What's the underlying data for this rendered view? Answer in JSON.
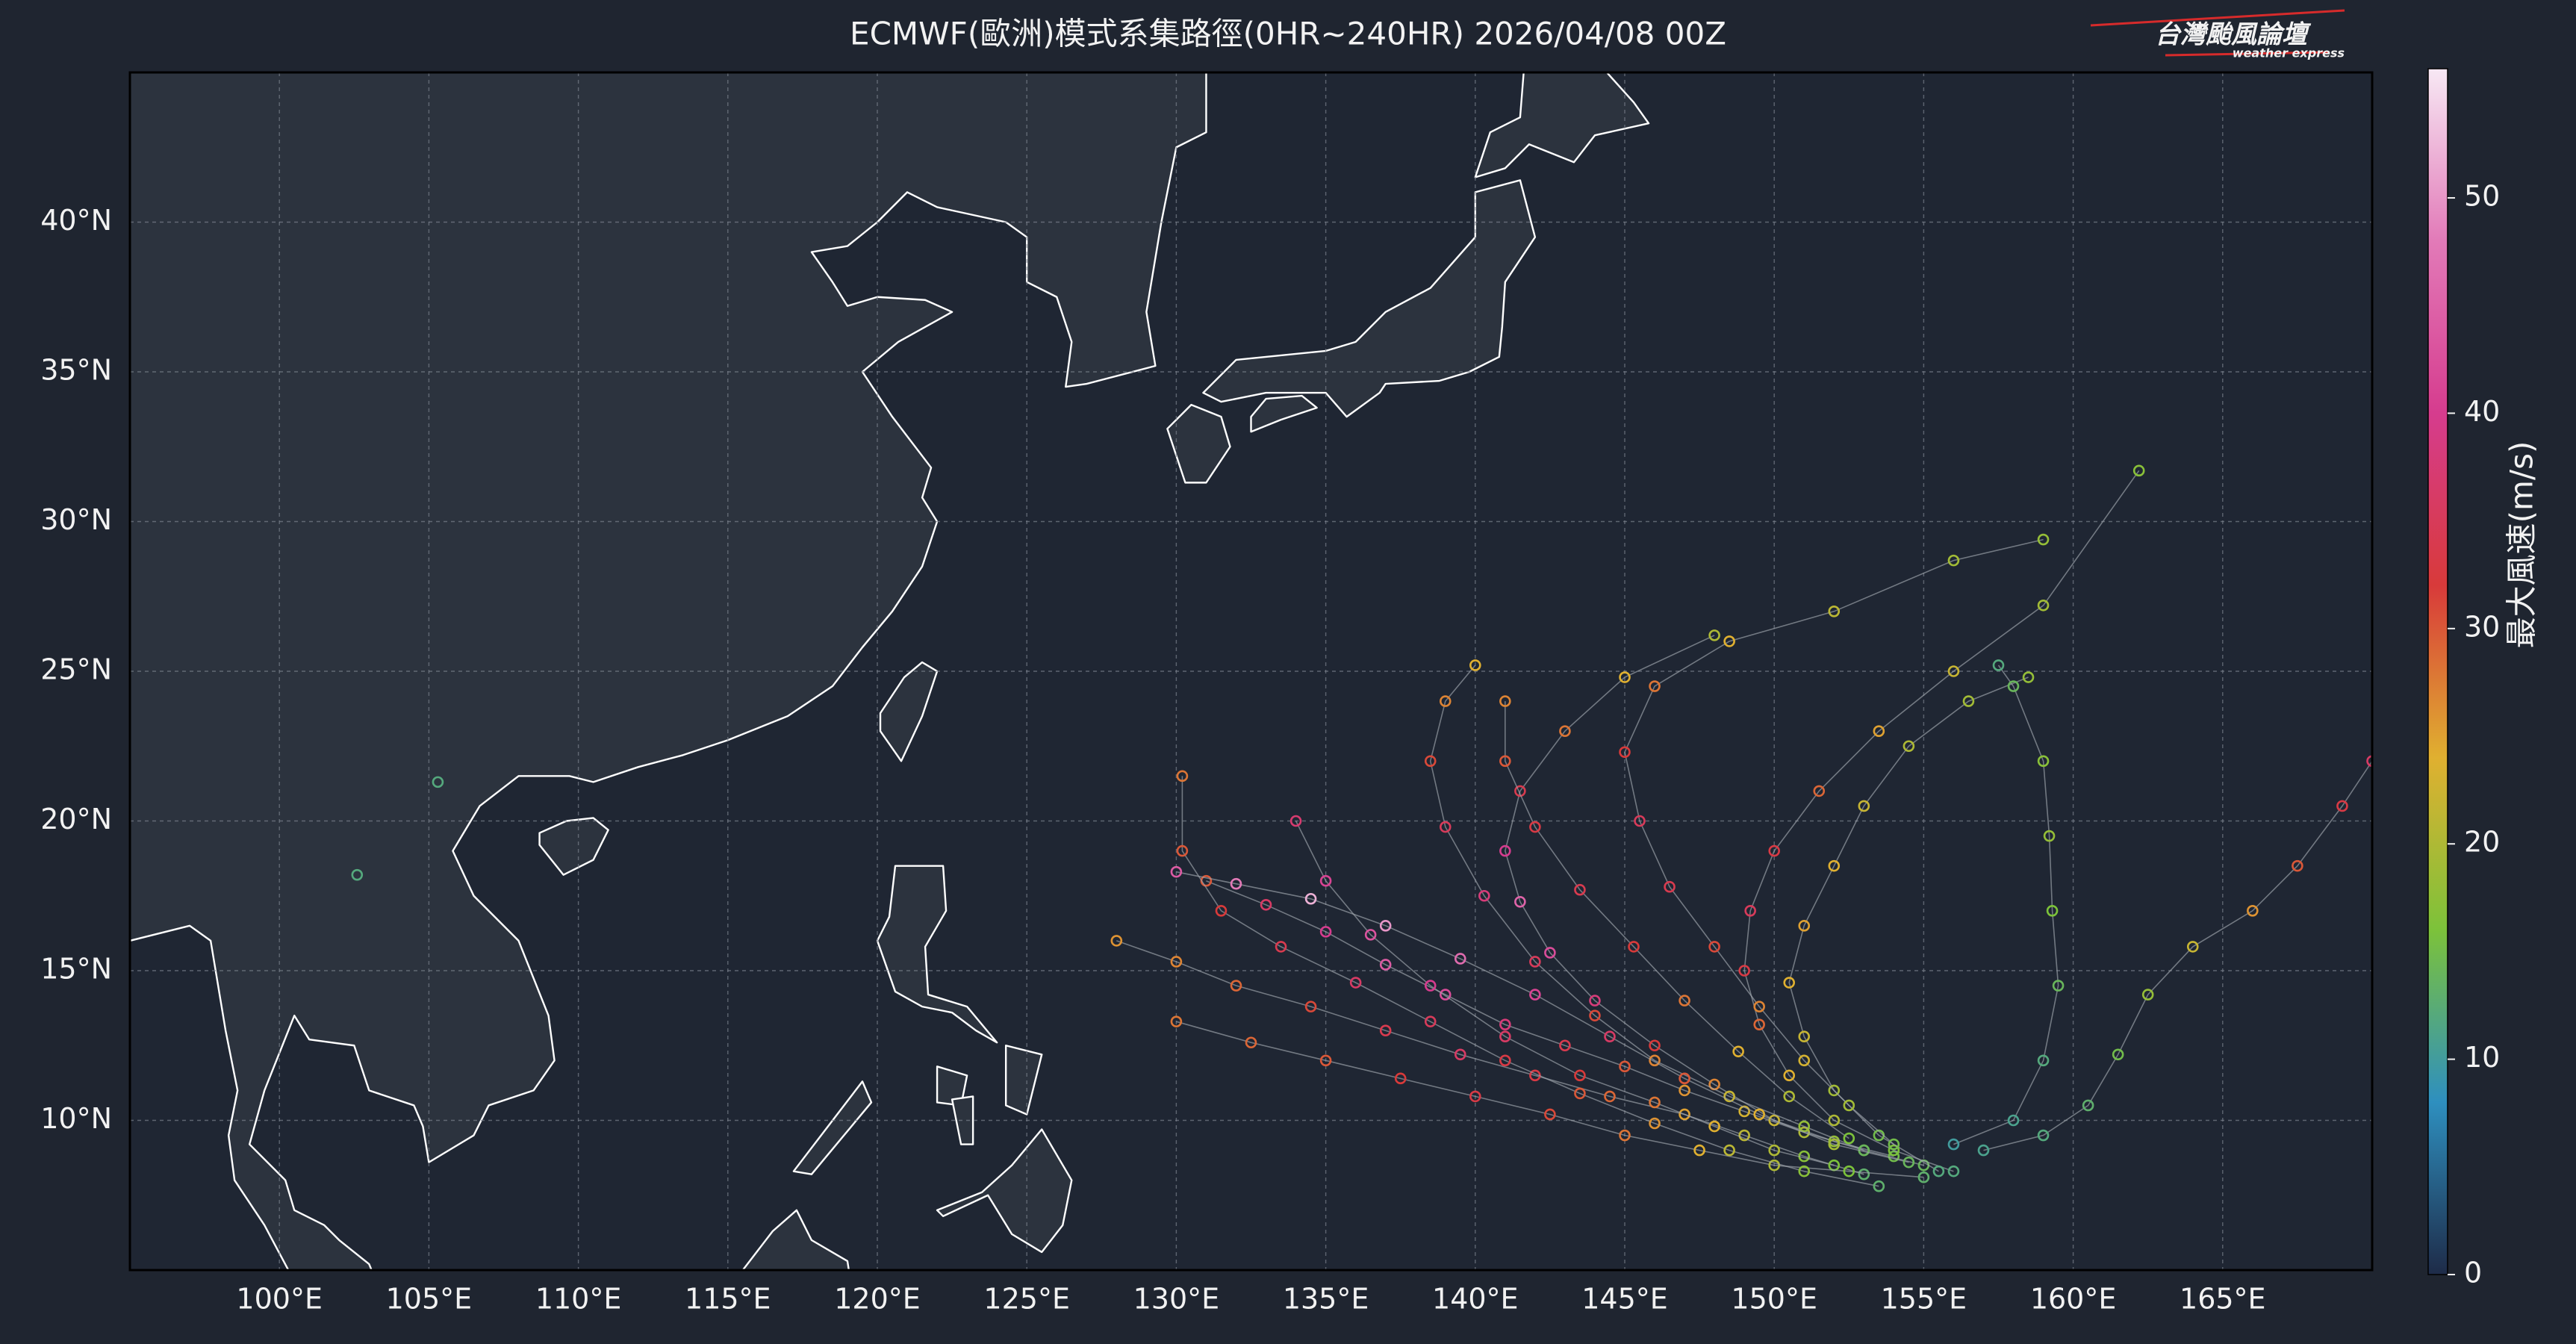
{
  "map": {
    "title": "ECMWF(歐洲)模式系集路徑(0HR~240HR) 2026/04/08 00Z",
    "xlim": [
      95,
      170
    ],
    "ylim": [
      5,
      45
    ],
    "grid": true,
    "xticks": [
      {
        "value": 100,
        "label": "100°E"
      },
      {
        "value": 105,
        "label": "105°E"
      },
      {
        "value": 110,
        "label": "110°E"
      },
      {
        "value": 115,
        "label": "115°E"
      },
      {
        "value": 120,
        "label": "120°E"
      },
      {
        "value": 125,
        "label": "125°E"
      },
      {
        "value": 130,
        "label": "130°E"
      },
      {
        "value": 135,
        "label": "135°E"
      },
      {
        "value": 140,
        "label": "140°E"
      },
      {
        "value": 145,
        "label": "145°E"
      },
      {
        "value": 150,
        "label": "150°E"
      },
      {
        "value": 155,
        "label": "155°E"
      },
      {
        "value": 160,
        "label": "160°E"
      },
      {
        "value": 165,
        "label": "165°E"
      }
    ],
    "yticks": [
      {
        "value": 10,
        "label": "10°N"
      },
      {
        "value": 15,
        "label": "15°N"
      },
      {
        "value": 20,
        "label": "20°N"
      },
      {
        "value": 25,
        "label": "25°N"
      },
      {
        "value": 30,
        "label": "30°N"
      },
      {
        "value": 35,
        "label": "35°N"
      },
      {
        "value": 40,
        "label": "40°N"
      }
    ],
    "tracks": [
      {
        "lon": [
          155,
          153,
          151,
          149,
          147,
          145,
          143,
          141,
          139,
          137,
          135,
          133,
          131
        ],
        "lat": [
          8.5,
          9,
          9.6,
          10.3,
          11,
          11.8,
          12.5,
          13.2,
          14.2,
          15.2,
          16.3,
          17.2,
          18
        ],
        "wind": [
          14,
          17,
          20,
          23,
          26,
          30,
          34,
          38,
          42,
          44,
          40,
          36,
          30
        ]
      },
      {
        "lon": [
          154,
          152,
          150,
          148,
          146,
          144,
          142.5,
          141.5,
          141,
          141.5,
          143,
          145,
          148
        ],
        "lat": [
          8.8,
          9.3,
          10,
          11.2,
          12.5,
          14,
          15.6,
          17.3,
          19,
          21,
          23,
          24.8,
          26.2
        ],
        "wind": [
          15,
          18,
          22,
          27,
          32,
          38,
          42,
          45,
          40,
          34,
          28,
          24,
          20
        ]
      },
      {
        "lon": [
          153,
          151,
          149,
          147,
          144.5,
          142,
          139.5,
          137,
          134.5,
          132,
          130,
          128
        ],
        "lat": [
          8.2,
          8.8,
          9.5,
          10.2,
          10.8,
          11.5,
          12.2,
          13,
          13.8,
          14.5,
          15.3,
          16
        ],
        "wind": [
          13,
          17,
          21,
          25,
          29,
          33,
          36,
          34,
          31,
          29,
          27,
          26
        ]
      },
      {
        "lon": [
          156,
          154,
          152,
          150.5,
          149.5,
          149,
          149.2,
          150,
          151.5,
          153.5,
          156,
          159,
          162.2
        ],
        "lat": [
          8.3,
          9,
          10,
          11.5,
          13.2,
          15,
          17,
          19,
          21,
          23,
          25,
          27.2,
          31.7
        ],
        "wind": [
          12,
          16,
          20,
          24,
          29,
          33,
          35,
          33,
          29,
          25,
          22,
          19,
          17
        ]
      },
      {
        "lon": [
          152,
          150,
          148,
          146,
          143.5,
          141,
          138.5,
          136.5,
          135,
          134
        ],
        "lat": [
          8.5,
          9,
          9.8,
          10.6,
          11.5,
          12.8,
          14.5,
          16.2,
          18,
          20
        ],
        "wind": [
          16,
          20,
          24,
          28,
          32,
          36,
          40,
          43,
          41,
          37
        ]
      },
      {
        "lon": [
          155.5,
          153.5,
          152,
          151,
          150.5,
          151,
          152,
          153,
          154.5,
          156.5,
          158.5
        ],
        "lat": [
          8.3,
          9.5,
          11,
          12.8,
          14.6,
          16.5,
          18.5,
          20.5,
          22.5,
          24,
          24.8
        ],
        "wind": [
          12,
          15,
          19,
          22,
          24,
          25,
          24,
          22,
          20,
          19,
          18
        ]
      },
      {
        "lon": [
          153,
          151,
          148.5,
          146,
          144,
          142,
          140.3,
          139,
          138.5,
          139,
          140
        ],
        "lat": [
          9,
          9.8,
          10.8,
          12,
          13.5,
          15.3,
          17.5,
          19.8,
          22,
          24,
          25.2
        ],
        "wind": [
          14,
          18,
          22,
          27,
          31,
          35,
          38,
          35,
          31,
          27,
          24
        ]
      },
      {
        "lon": [
          155,
          152.5,
          150,
          147.5,
          145,
          142.5,
          140,
          137.5,
          135,
          132.5,
          130
        ],
        "lat": [
          8.1,
          8.3,
          8.5,
          9,
          9.5,
          10.2,
          10.8,
          11.4,
          12,
          12.6,
          13.3
        ],
        "wind": [
          13,
          16,
          20,
          24,
          28,
          31,
          33,
          32,
          30,
          29,
          28
        ]
      },
      {
        "lon": [
          157,
          159,
          160.5,
          161.5,
          162.5,
          164,
          166,
          167.5,
          169,
          170
        ],
        "lat": [
          9,
          9.5,
          10.5,
          12.2,
          14.2,
          15.8,
          17,
          18.5,
          20.5,
          22
        ],
        "wind": [
          11,
          12,
          13,
          15,
          18,
          22,
          26,
          30,
          33,
          36
        ]
      },
      {
        "lon": [
          154,
          152.5,
          151,
          149.5,
          148,
          146.5,
          145.5,
          145,
          146,
          148.5,
          152,
          156,
          159
        ],
        "lat": [
          9.2,
          10.5,
          12,
          13.8,
          15.8,
          17.8,
          20,
          22.3,
          24.5,
          26,
          27,
          28.7,
          29.4
        ],
        "wind": [
          15,
          19,
          23,
          27,
          31,
          34,
          35,
          32,
          28,
          24,
          21,
          19,
          18
        ]
      },
      {
        "lon": [
          154.5,
          152,
          149.5,
          147,
          144.5,
          142,
          139.5,
          137,
          134.5,
          132,
          130
        ],
        "lat": [
          8.6,
          9.2,
          10.2,
          11.4,
          12.8,
          14.2,
          15.4,
          16.5,
          17.4,
          17.9,
          18.3
        ],
        "wind": [
          14,
          19,
          24,
          30,
          36,
          41,
          46,
          50,
          52,
          48,
          44
        ]
      },
      {
        "lon": [
          156,
          158,
          159,
          159.5,
          159.3,
          159.2,
          159,
          158,
          157.5
        ],
        "lat": [
          9.2,
          10,
          12,
          14.5,
          17,
          19.5,
          22,
          24.5,
          25.2
        ],
        "wind": [
          10,
          11,
          12,
          14,
          16,
          18,
          17,
          14,
          12
        ]
      },
      {
        "lon": [
          153.5,
          151,
          148.5,
          146,
          143.5,
          141,
          138.5,
          136,
          133.5,
          131.5,
          130.2,
          130.2
        ],
        "lat": [
          7.8,
          8.3,
          9,
          9.9,
          10.9,
          12,
          13.3,
          14.6,
          15.8,
          17,
          19,
          21.5
        ],
        "wind": [
          13,
          17,
          21,
          26,
          30,
          33,
          35,
          36,
          34,
          32,
          30,
          28
        ]
      },
      {
        "lon": [
          152.5,
          150.5,
          148.8,
          147,
          145.3,
          143.5,
          142,
          141,
          141
        ],
        "lat": [
          9.4,
          10.8,
          12.3,
          14,
          15.8,
          17.7,
          19.8,
          22,
          24
        ],
        "wind": [
          16,
          20,
          24,
          28,
          32,
          34,
          33,
          30,
          27
        ]
      },
      {
        "lon": [
          105.3
        ],
        "lat": [
          21.3
        ],
        "wind": [
          12
        ]
      },
      {
        "lon": [
          102.6
        ],
        "lat": [
          18.2
        ],
        "wind": [
          12
        ]
      }
    ]
  },
  "colorbar": {
    "label": "最大風速(m/s)",
    "lim": [
      0,
      56
    ],
    "ticks": [
      0,
      10,
      20,
      30,
      40,
      50
    ],
    "colors": [
      "#1e2b48",
      "#2e8fbf",
      "#7cc23a",
      "#e0b030",
      "#d83a3a",
      "#d63c8e",
      "#e27ab8",
      "#f7e8f4"
    ]
  },
  "logo": {
    "name": "台灣颱風論壇",
    "subtitle": "weather express"
  }
}
